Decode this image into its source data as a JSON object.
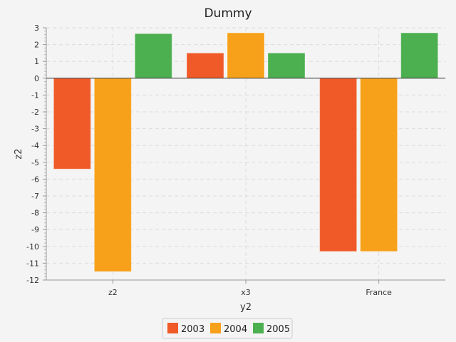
{
  "chart_data": {
    "type": "bar",
    "title": "Dummy",
    "xlabel": "y2",
    "ylabel": "z2",
    "categories": [
      "z2",
      "x3",
      "France"
    ],
    "series": [
      {
        "name": "2003",
        "values": [
          -5.4,
          1.5,
          -10.3
        ]
      },
      {
        "name": "2004",
        "values": [
          -11.5,
          2.7,
          -10.3
        ]
      },
      {
        "name": "2005",
        "values": [
          2.65,
          1.5,
          2.7
        ]
      }
    ],
    "ylim": [
      -12,
      3
    ],
    "yticks": [
      "3",
      "2",
      "1",
      "0",
      "-1",
      "-2",
      "-3",
      "-4",
      "-5",
      "-6",
      "-7",
      "-8",
      "-9",
      "-10",
      "-11",
      "-12"
    ],
    "grid": true,
    "legend_position": "bottom-center",
    "colors": [
      "#f05a28",
      "#f7a11a",
      "#4caf50"
    ]
  }
}
